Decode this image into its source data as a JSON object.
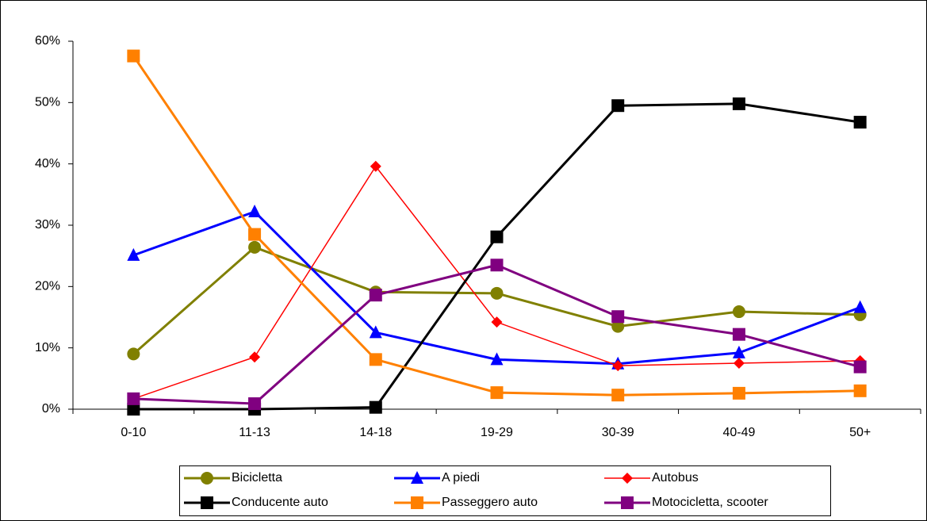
{
  "chart_data": {
    "type": "line",
    "categories": [
      "0-10",
      "11-13",
      "14-18",
      "19-29",
      "30-39",
      "40-49",
      "50+"
    ],
    "ylim": [
      0,
      60
    ],
    "yticks": [
      {
        "value": 0,
        "label": "0%"
      },
      {
        "value": 10,
        "label": "10%"
      },
      {
        "value": 20,
        "label": "20%"
      },
      {
        "value": 30,
        "label": "30%"
      },
      {
        "value": 40,
        "label": "40%"
      },
      {
        "value": 50,
        "label": "50%"
      },
      {
        "value": 60,
        "label": "60%"
      }
    ],
    "grid": false,
    "legend": "bottom",
    "series": [
      {
        "name": "Bicicletta",
        "color": "#808000",
        "marker": "circle",
        "line_width": 3,
        "values": [
          9.0,
          26.4,
          19.1,
          18.9,
          13.5,
          15.9,
          15.4
        ]
      },
      {
        "name": "A piedi",
        "color": "#0000ff",
        "marker": "triangle",
        "line_width": 3,
        "values": [
          25.1,
          32.2,
          12.5,
          8.1,
          7.4,
          9.2,
          16.6
        ]
      },
      {
        "name": "Autobus",
        "color": "#ff0000",
        "marker": "diamond",
        "line_width": 1.5,
        "values": [
          1.7,
          8.5,
          39.6,
          14.2,
          7.1,
          7.5,
          7.9
        ]
      },
      {
        "name": "Conducente auto",
        "color": "#000000",
        "marker": "square",
        "line_width": 3,
        "values": [
          0,
          0,
          0.3,
          28.1,
          49.5,
          49.8,
          46.8
        ]
      },
      {
        "name": "Passeggero auto",
        "color": "#ff8000",
        "marker": "square",
        "line_width": 3,
        "values": [
          57.6,
          28.5,
          8.1,
          2.7,
          2.3,
          2.6,
          3.0
        ]
      },
      {
        "name": "Motocicletta, scooter",
        "color": "#800080",
        "marker": "square",
        "line_width": 3,
        "values": [
          1.7,
          0.9,
          18.6,
          23.5,
          15.1,
          12.2,
          6.9
        ]
      }
    ]
  }
}
